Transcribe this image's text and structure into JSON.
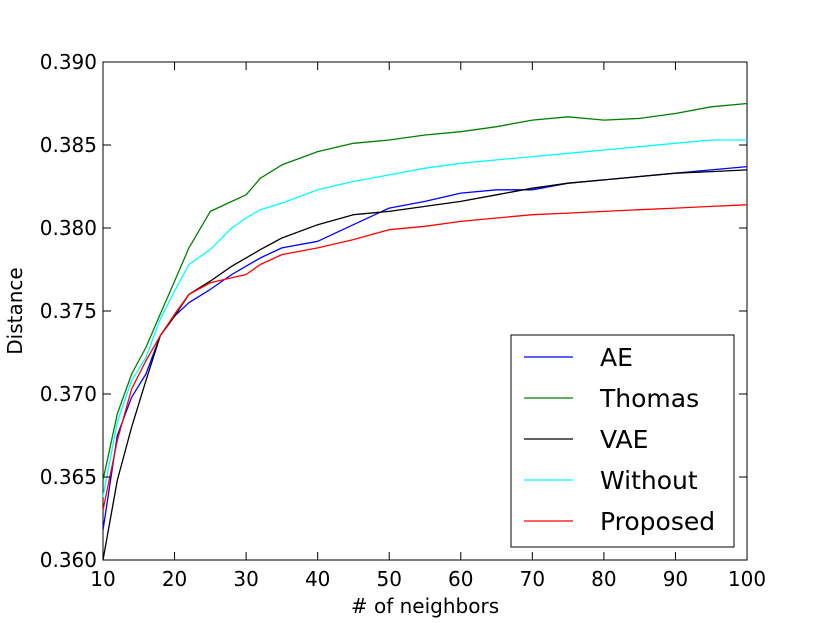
{
  "chart_data": {
    "type": "line",
    "title": "",
    "xlabel": "# of neighbors",
    "ylabel": "Distance",
    "xlim": [
      10,
      100
    ],
    "ylim": [
      0.36,
      0.39
    ],
    "xticks": [
      "10",
      "20",
      "30",
      "40",
      "50",
      "60",
      "70",
      "80",
      "90",
      "100"
    ],
    "yticks": [
      "0.360",
      "0.365",
      "0.370",
      "0.375",
      "0.380",
      "0.385",
      "0.390"
    ],
    "grid": false,
    "legend_position": "lower-right",
    "x": [
      10,
      12,
      14,
      16,
      18,
      20,
      22,
      25,
      28,
      30,
      32,
      35,
      40,
      45,
      50,
      55,
      60,
      65,
      70,
      75,
      80,
      85,
      90,
      95,
      100
    ],
    "series": [
      {
        "name": "AE",
        "color": "#0000ff",
        "values": [
          0.3618,
          0.3675,
          0.3698,
          0.3712,
          0.3735,
          0.3747,
          0.3755,
          0.3763,
          0.3772,
          0.3777,
          0.3782,
          0.3788,
          0.3792,
          0.3802,
          0.3812,
          0.3816,
          0.3821,
          0.3823,
          0.3823,
          0.3827,
          0.3829,
          0.3831,
          0.3833,
          0.3835,
          0.3837
        ]
      },
      {
        "name": "Thomas",
        "color": "#008000",
        "values": [
          0.3648,
          0.3688,
          0.3712,
          0.3728,
          0.3748,
          0.3768,
          0.3788,
          0.381,
          0.3816,
          0.382,
          0.383,
          0.3838,
          0.3846,
          0.3851,
          0.3853,
          0.3856,
          0.3858,
          0.3861,
          0.3865,
          0.3867,
          0.3865,
          0.3866,
          0.3869,
          0.3873,
          0.3875
        ]
      },
      {
        "name": "VAE",
        "color": "#000000",
        "values": [
          0.36,
          0.3648,
          0.368,
          0.3708,
          0.3735,
          0.3747,
          0.376,
          0.3768,
          0.3777,
          0.3782,
          0.3787,
          0.3794,
          0.3802,
          0.3808,
          0.381,
          0.3813,
          0.3816,
          0.382,
          0.3824,
          0.3827,
          0.3829,
          0.3831,
          0.3833,
          0.3834,
          0.3835
        ]
      },
      {
        "name": "Without",
        "color": "#00ffff",
        "values": [
          0.3638,
          0.3683,
          0.3708,
          0.3722,
          0.3745,
          0.3762,
          0.3778,
          0.3787,
          0.38,
          0.3806,
          0.3811,
          0.3815,
          0.3823,
          0.3828,
          0.3832,
          0.3836,
          0.3839,
          0.3841,
          0.3843,
          0.3845,
          0.3847,
          0.3849,
          0.3851,
          0.3853,
          0.3853
        ]
      },
      {
        "name": "Proposed",
        "color": "#ff0000",
        "values": [
          0.363,
          0.3672,
          0.3703,
          0.372,
          0.3735,
          0.3748,
          0.376,
          0.3767,
          0.377,
          0.3772,
          0.3778,
          0.3784,
          0.3788,
          0.3793,
          0.3799,
          0.3801,
          0.3804,
          0.3806,
          0.3808,
          0.3809,
          0.381,
          0.3811,
          0.3812,
          0.3813,
          0.3814
        ]
      }
    ]
  }
}
